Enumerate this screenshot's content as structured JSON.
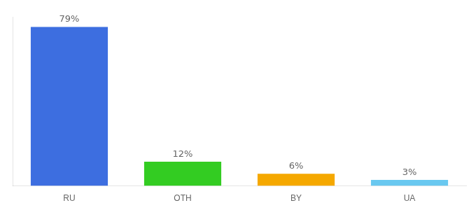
{
  "chart_data": {
    "type": "bar",
    "categories": [
      "RU",
      "OTH",
      "BY",
      "UA"
    ],
    "values": [
      79,
      12,
      6,
      3
    ],
    "value_labels": [
      "79%",
      "12%",
      "6%",
      "3%"
    ],
    "colors": [
      "#3d6ee0",
      "#33cc22",
      "#f5a800",
      "#69c8f0"
    ],
    "ylim": [
      0,
      84
    ],
    "data_labels": true,
    "tick_labels": "x",
    "grid": false
  }
}
